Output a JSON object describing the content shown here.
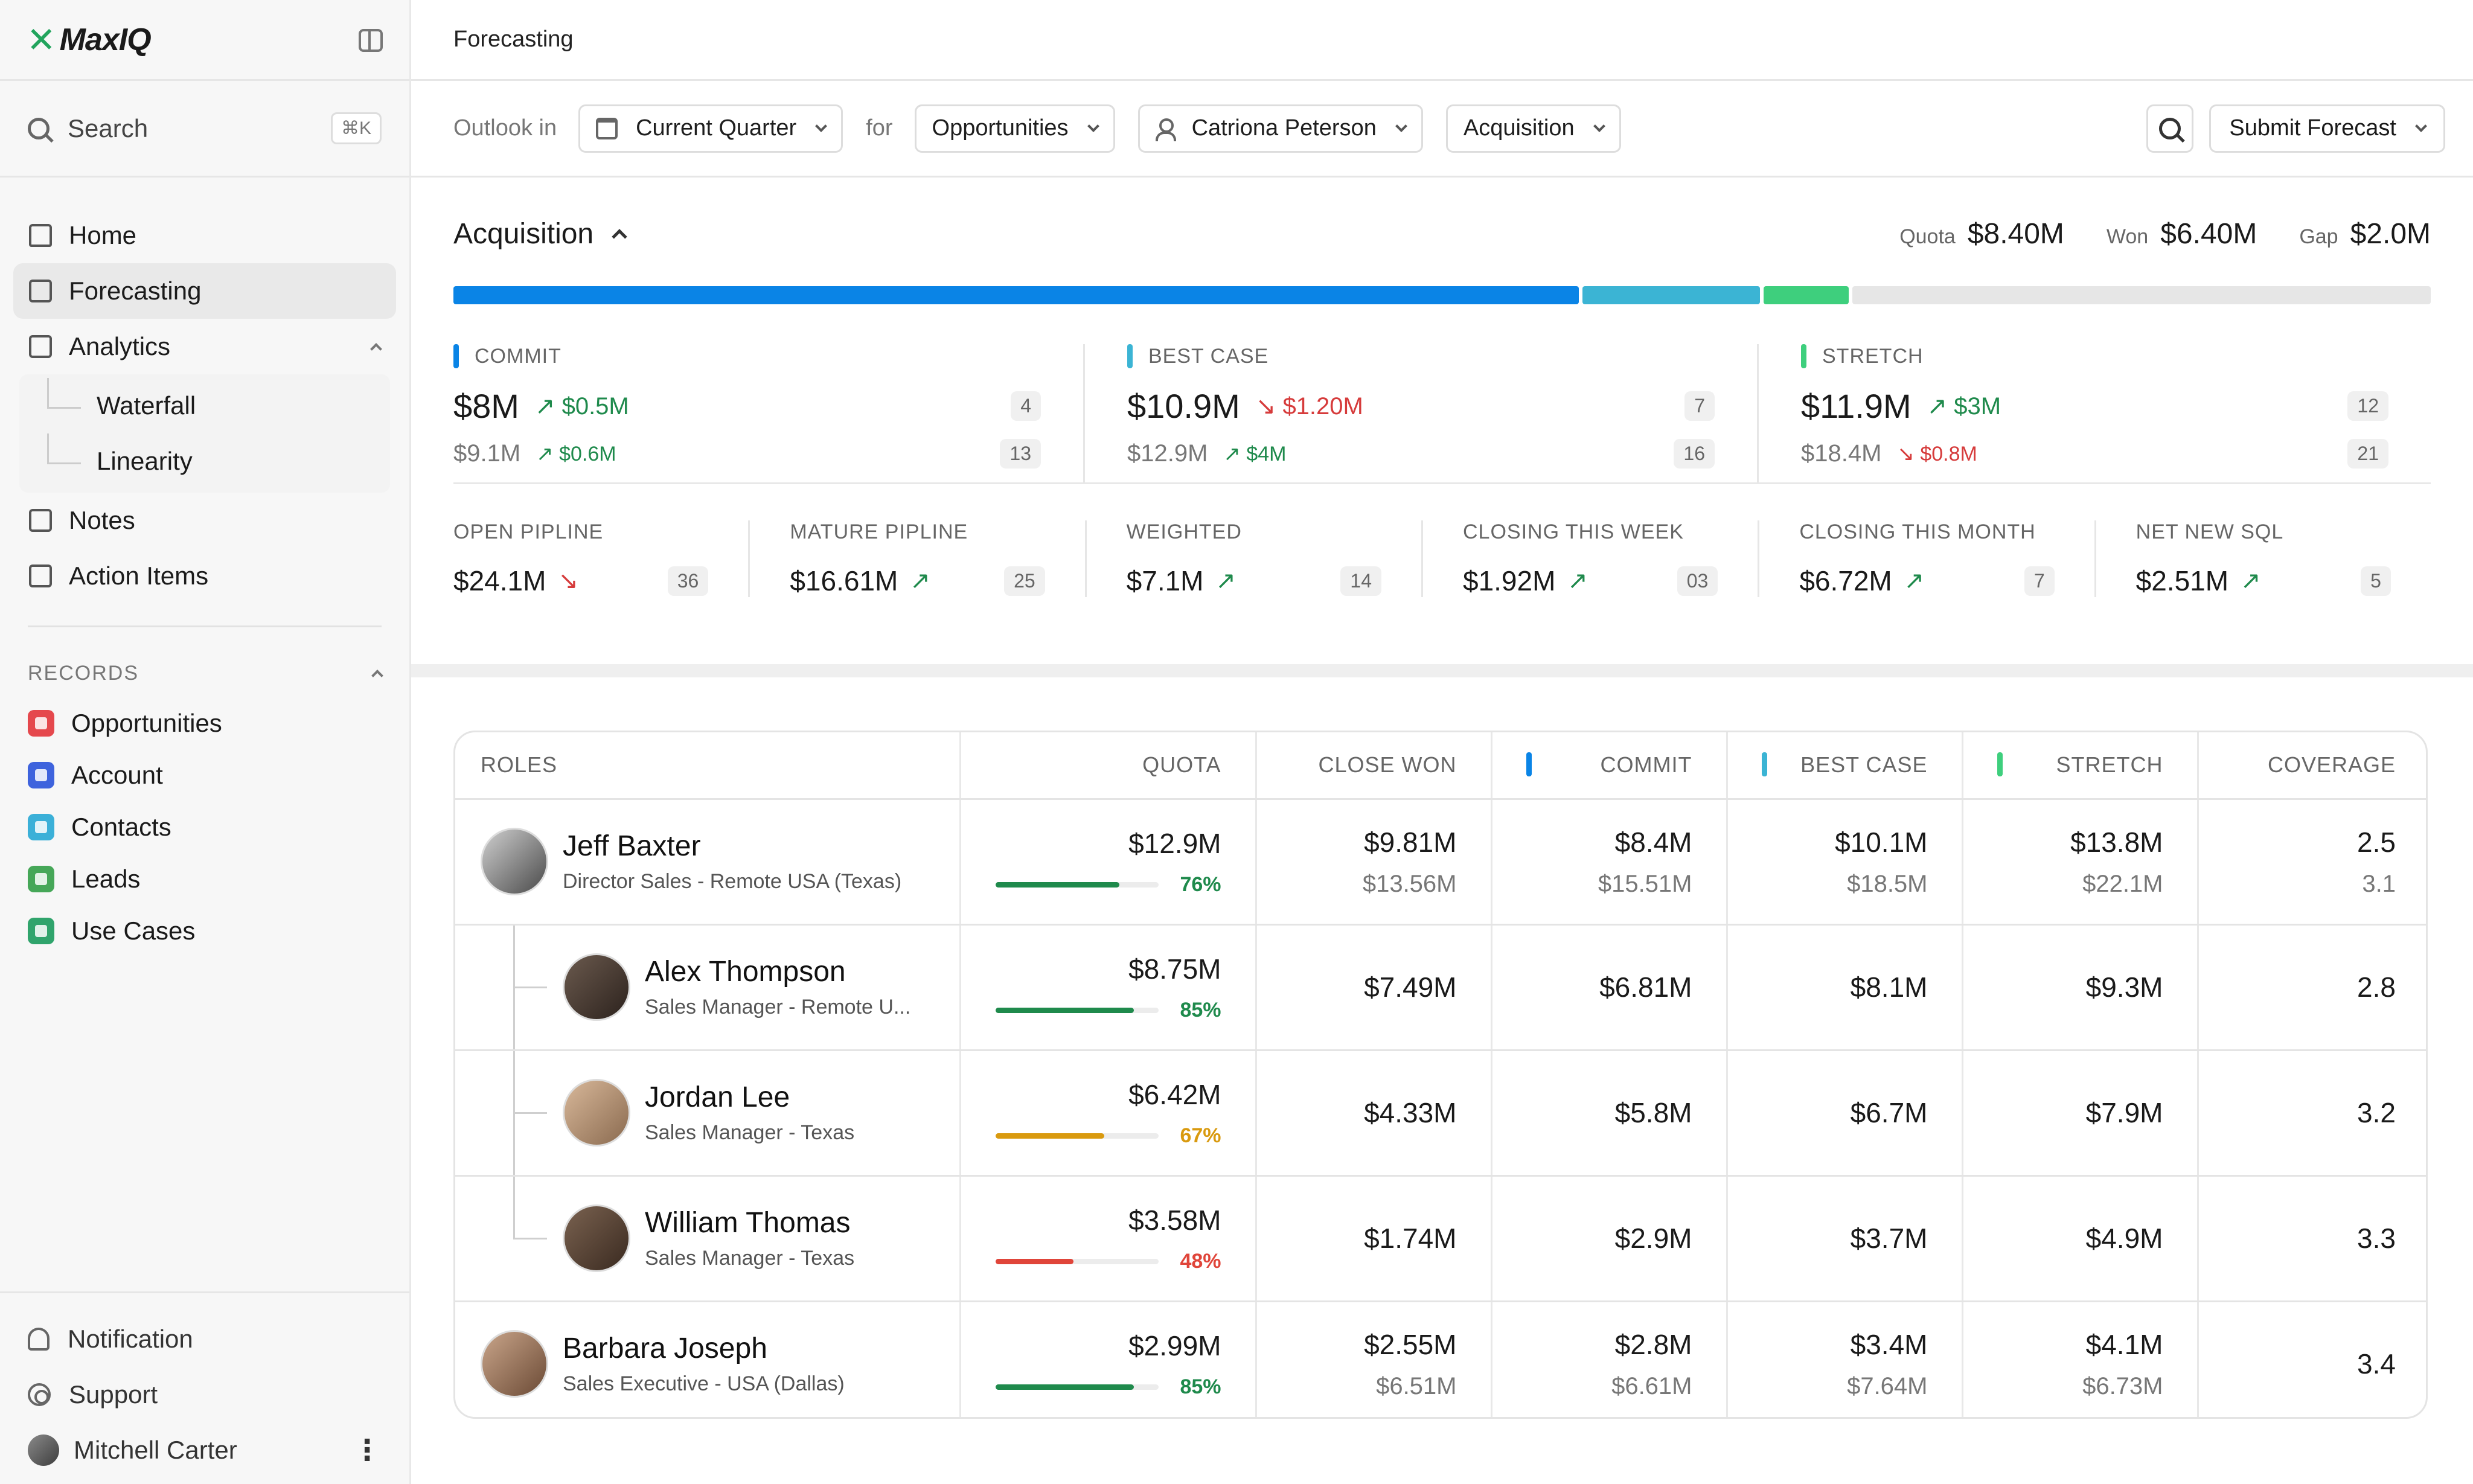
{
  "brand": {
    "name": "MaxIQ"
  },
  "sidebar": {
    "search": {
      "label": "Search",
      "shortcut": "⌘K"
    },
    "nav": [
      {
        "label": "Home",
        "icon": "home-icon"
      },
      {
        "label": "Forecasting",
        "icon": "presentation-chart-icon",
        "active": true
      },
      {
        "label": "Analytics",
        "icon": "bar-chart-icon",
        "expanded": true
      }
    ],
    "analytics_sub": [
      {
        "label": "Waterfall"
      },
      {
        "label": "Linearity"
      }
    ],
    "nav2": [
      {
        "label": "Notes",
        "icon": "notes-icon"
      },
      {
        "label": "Action Items",
        "icon": "clipboard-icon"
      }
    ],
    "records_label": "RECORDS",
    "records": [
      {
        "label": "Opportunities",
        "color": "#e5484d"
      },
      {
        "label": "Account",
        "color": "#3e63dd"
      },
      {
        "label": "Contacts",
        "color": "#3bb0d8"
      },
      {
        "label": "Leads",
        "color": "#46a758"
      },
      {
        "label": "Use Cases",
        "color": "#30a46c"
      }
    ],
    "bottom": {
      "notification": "Notification",
      "support": "Support",
      "user": "Mitchell Carter"
    }
  },
  "page": {
    "title": "Forecasting"
  },
  "filters": {
    "outlook_label": "Outlook in",
    "period": "Current Quarter",
    "for_label": "for",
    "record_type": "Opportunities",
    "owner": "Catriona Peterson",
    "segment": "Acquisition",
    "submit": "Submit Forecast"
  },
  "summary": {
    "title": "Acquisition",
    "quota_label": "Quota",
    "quota": "$8.40M",
    "won_label": "Won",
    "won": "$6.40M",
    "gap_label": "Gap",
    "gap": "$2.0M",
    "progress": [
      {
        "name": "commit",
        "fraction": 0.57,
        "color": "#0a84e6"
      },
      {
        "name": "best-case",
        "fraction": 0.09,
        "color": "#3bb4d4"
      },
      {
        "name": "stretch",
        "fraction": 0.043,
        "color": "#3ecf7d"
      },
      {
        "name": "remaining",
        "fraction": 0.097,
        "color": "#e6e6e6"
      }
    ],
    "cards": [
      {
        "label": "COMMIT",
        "color": "#0a84e6",
        "value": "$8M",
        "delta": "$0.5M",
        "delta_dir": "up",
        "count": "4",
        "sub": "$9.1M",
        "sub_delta": "$0.6M",
        "sub_dir": "up",
        "sub_count": "13"
      },
      {
        "label": "BEST CASE",
        "color": "#3bb4d4",
        "value": "$10.9M",
        "delta": "$1.20M",
        "delta_dir": "down",
        "count": "7",
        "sub": "$12.9M",
        "sub_delta": "$4M",
        "sub_dir": "up",
        "sub_count": "16"
      },
      {
        "label": "STRETCH",
        "color": "#3ecf7d",
        "value": "$11.9M",
        "delta": "$3M",
        "delta_dir": "up",
        "count": "12",
        "sub": "$18.4M",
        "sub_delta": "$0.8M",
        "sub_dir": "down",
        "sub_count": "21"
      }
    ],
    "metrics": [
      {
        "label": "OPEN PIPLINE",
        "value": "$24.1M",
        "dir": "down",
        "count": "36"
      },
      {
        "label": "MATURE PIPLINE",
        "value": "$16.61M",
        "dir": "up",
        "count": "25"
      },
      {
        "label": "WEIGHTED",
        "value": "$7.1M",
        "dir": "up",
        "count": "14"
      },
      {
        "label": "CLOSING THIS WEEK",
        "value": "$1.92M",
        "dir": "up",
        "count": "03"
      },
      {
        "label": "CLOSING THIS MONTH",
        "value": "$6.72M",
        "dir": "up",
        "count": "7"
      },
      {
        "label": "NET NEW SQL",
        "value": "$2.51M",
        "dir": "up",
        "count": "5"
      }
    ]
  },
  "table": {
    "headers": {
      "roles": "ROLES",
      "quota": "QUOTA",
      "close_won": "CLOSE WON",
      "commit": "COMMIT",
      "best_case": "BEST CASE",
      "stretch": "STRETCH",
      "coverage": "COVERAGE"
    },
    "rows": [
      {
        "name": "Jeff Baxter",
        "role": "Director Sales - Remote USA (Texas)",
        "quota": "$12.9M",
        "pct": "76%",
        "pct_value": 0.76,
        "bar_color": "#1f8a4c",
        "close_won": "$9.81M",
        "close_won_sub": "$13.56M",
        "commit": "$8.4M",
        "commit_sub": "$15.51M",
        "best_case": "$10.1M",
        "best_case_sub": "$18.5M",
        "stretch": "$13.8M",
        "stretch_sub": "$22.1M",
        "coverage": "2.5",
        "coverage_sub": "3.1",
        "child": false
      },
      {
        "name": "Alex Thompson",
        "role": "Sales Manager - Remote U...",
        "quota": "$8.75M",
        "pct": "85%",
        "pct_value": 0.85,
        "bar_color": "#1f8a4c",
        "close_won": "$7.49M",
        "close_won_sub": "",
        "commit": "$6.81M",
        "commit_sub": "",
        "best_case": "$8.1M",
        "best_case_sub": "",
        "stretch": "$9.3M",
        "stretch_sub": "",
        "coverage": "2.8",
        "coverage_sub": "",
        "child": true
      },
      {
        "name": "Jordan Lee",
        "role": "Sales Manager - Texas",
        "quota": "$6.42M",
        "pct": "67%",
        "pct_value": 0.67,
        "bar_color": "#d99a0f",
        "close_won": "$4.33M",
        "close_won_sub": "",
        "commit": "$5.8M",
        "commit_sub": "",
        "best_case": "$6.7M",
        "best_case_sub": "",
        "stretch": "$7.9M",
        "stretch_sub": "",
        "coverage": "3.2",
        "coverage_sub": "",
        "child": true
      },
      {
        "name": "William Thomas",
        "role": "Sales Manager - Texas",
        "quota": "$3.58M",
        "pct": "48%",
        "pct_value": 0.48,
        "bar_color": "#e0453a",
        "close_won": "$1.74M",
        "close_won_sub": "",
        "commit": "$2.9M",
        "commit_sub": "",
        "best_case": "$3.7M",
        "best_case_sub": "",
        "stretch": "$4.9M",
        "stretch_sub": "",
        "coverage": "3.3",
        "coverage_sub": "",
        "child": true,
        "last_child": true
      },
      {
        "name": "Barbara Joseph",
        "role": "Sales Executive - USA (Dallas)",
        "quota": "$2.99M",
        "pct": "85%",
        "pct_value": 0.85,
        "bar_color": "#1f8a4c",
        "close_won": "$2.55M",
        "close_won_sub": "$6.51M",
        "commit": "$2.8M",
        "commit_sub": "$6.61M",
        "best_case": "$3.4M",
        "best_case_sub": "$7.64M",
        "stretch": "$4.1M",
        "stretch_sub": "$6.73M",
        "coverage": "3.4",
        "coverage_sub": "",
        "child": false
      }
    ]
  }
}
